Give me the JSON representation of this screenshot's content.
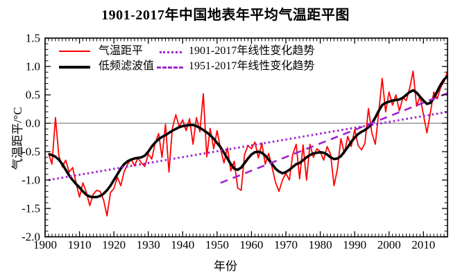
{
  "page": {
    "background": "#ffffff"
  },
  "chart_data": {
    "type": "line",
    "title": "1901-2017年中国地表年平均气温距平图",
    "xlabel": "年份",
    "ylabel": "气温距平/°C",
    "x_range": [
      1900,
      2017
    ],
    "y_range": [
      -2.0,
      1.5
    ],
    "x_minor_step": 1,
    "y_minor_step": 0.1,
    "x_major_ticks": [
      1900,
      1910,
      1920,
      1930,
      1940,
      1950,
      1960,
      1970,
      1980,
      1990,
      2000,
      2010
    ],
    "x_tick_labels": [
      "1900",
      "1910",
      "1920",
      "1930",
      "1940",
      "1950",
      "1960",
      "1970",
      "1980",
      "1990",
      "2000",
      "2010"
    ],
    "y_major_ticks": [
      1.5,
      1.0,
      0.5,
      0.0,
      -0.5,
      -1.0,
      -1.5,
      -2.0
    ],
    "y_tick_labels": [
      "1.5",
      "1.0",
      "0.5",
      "0.0",
      "-0.5",
      "-1.0",
      "-1.5",
      "-2.0"
    ],
    "zero_line": 0.0,
    "grid": "off",
    "legend_position": "top-left",
    "colors": {
      "anomaly": "#ff0000",
      "filtered": "#000000",
      "trend": "#a020d0",
      "axis": "#000000",
      "zero_line": "#666666"
    },
    "years": [
      1901,
      1902,
      1903,
      1904,
      1905,
      1906,
      1907,
      1908,
      1909,
      1910,
      1911,
      1912,
      1913,
      1914,
      1915,
      1916,
      1917,
      1918,
      1919,
      1920,
      1921,
      1922,
      1923,
      1924,
      1925,
      1926,
      1927,
      1928,
      1929,
      1930,
      1931,
      1932,
      1933,
      1934,
      1935,
      1936,
      1937,
      1938,
      1939,
      1940,
      1941,
      1942,
      1943,
      1944,
      1945,
      1946,
      1947,
      1948,
      1949,
      1950,
      1951,
      1952,
      1953,
      1954,
      1955,
      1956,
      1957,
      1958,
      1959,
      1960,
      1961,
      1962,
      1963,
      1964,
      1965,
      1966,
      1967,
      1968,
      1969,
      1970,
      1971,
      1972,
      1973,
      1974,
      1975,
      1976,
      1977,
      1978,
      1979,
      1980,
      1981,
      1982,
      1983,
      1984,
      1985,
      1986,
      1987,
      1988,
      1989,
      1990,
      1991,
      1992,
      1993,
      1994,
      1995,
      1996,
      1997,
      1998,
      1999,
      2000,
      2001,
      2002,
      2003,
      2004,
      2005,
      2006,
      2007,
      2008,
      2009,
      2010,
      2011,
      2012,
      2013,
      2014,
      2015,
      2016,
      2017
    ],
    "series": [
      {
        "name": "气温距平",
        "color": "#ff0000",
        "style": "solid",
        "width": 1.8,
        "values": [
          -0.53,
          -0.72,
          0.1,
          -0.57,
          -0.77,
          -0.65,
          -0.86,
          -0.78,
          -1.05,
          -1.3,
          -1.05,
          -1.22,
          -1.45,
          -1.25,
          -1.18,
          -1.2,
          -1.35,
          -1.63,
          -1.22,
          -1.15,
          -0.95,
          -1.1,
          -0.85,
          -0.72,
          -0.63,
          -0.75,
          -0.61,
          -0.7,
          -0.76,
          -0.54,
          -0.63,
          -0.35,
          -0.18,
          -0.6,
          -0.02,
          -0.86,
          -0.09,
          0.15,
          -0.06,
          0.06,
          -0.13,
          0.08,
          -0.37,
          0.1,
          -0.15,
          0.52,
          -0.59,
          -0.09,
          -0.45,
          -0.13,
          -0.45,
          -0.7,
          -0.43,
          -0.84,
          -0.67,
          -1.14,
          -1.18,
          -0.55,
          -0.39,
          -0.45,
          -0.33,
          -0.61,
          -0.35,
          -0.72,
          -0.53,
          -0.78,
          -1.04,
          -1.2,
          -1.0,
          -0.88,
          -1.0,
          -0.55,
          -0.37,
          -0.98,
          -0.38,
          -1.0,
          -0.37,
          -0.6,
          -0.45,
          -0.5,
          -0.65,
          -0.41,
          -0.55,
          -1.1,
          -0.8,
          -0.27,
          -0.53,
          -0.23,
          -0.41,
          -0.11,
          -0.39,
          -0.47,
          -0.35,
          0.26,
          -0.17,
          -0.37,
          0.2,
          0.79,
          0.2,
          0.55,
          0.32,
          0.5,
          0.22,
          0.45,
          0.4,
          0.62,
          0.92,
          0.3,
          0.48,
          0.15,
          -0.17,
          0.18,
          0.55,
          0.43,
          0.63,
          0.73,
          0.91
        ]
      },
      {
        "name": "低频滤波值",
        "color": "#000000",
        "style": "solid",
        "width": 3.6,
        "values": [
          -0.54,
          -0.56,
          -0.59,
          -0.64,
          -0.72,
          -0.82,
          -0.92,
          -1.0,
          -1.07,
          -1.13,
          -1.2,
          -1.26,
          -1.29,
          -1.3,
          -1.3,
          -1.28,
          -1.24,
          -1.18,
          -1.1,
          -1.0,
          -0.9,
          -0.8,
          -0.72,
          -0.67,
          -0.64,
          -0.62,
          -0.61,
          -0.6,
          -0.57,
          -0.5,
          -0.41,
          -0.34,
          -0.28,
          -0.24,
          -0.21,
          -0.17,
          -0.13,
          -0.1,
          -0.07,
          -0.05,
          -0.04,
          -0.03,
          -0.03,
          -0.05,
          -0.08,
          -0.12,
          -0.16,
          -0.21,
          -0.27,
          -0.35,
          -0.42,
          -0.52,
          -0.62,
          -0.72,
          -0.8,
          -0.82,
          -0.78,
          -0.7,
          -0.62,
          -0.55,
          -0.51,
          -0.5,
          -0.52,
          -0.57,
          -0.64,
          -0.72,
          -0.8,
          -0.85,
          -0.88,
          -0.86,
          -0.82,
          -0.77,
          -0.72,
          -0.7,
          -0.65,
          -0.6,
          -0.56,
          -0.53,
          -0.52,
          -0.51,
          -0.52,
          -0.55,
          -0.6,
          -0.63,
          -0.62,
          -0.58,
          -0.5,
          -0.42,
          -0.33,
          -0.25,
          -0.19,
          -0.15,
          -0.12,
          -0.07,
          -0.01,
          0.1,
          0.22,
          0.32,
          0.36,
          0.38,
          0.4,
          0.41,
          0.42,
          0.45,
          0.5,
          0.55,
          0.58,
          0.54,
          0.47,
          0.4,
          0.34,
          0.36,
          0.44,
          0.56,
          0.68,
          0.77,
          0.83
        ]
      },
      {
        "name": "1901-2017年线性变化趋势",
        "color": "#a020d0",
        "style": "dotted",
        "width": 3.0,
        "x": [
          1901,
          2017
        ],
        "y": [
          -1.0,
          0.2
        ]
      },
      {
        "name": "1951-2017年线性变化趋势",
        "color": "#a020d0",
        "style": "dashed",
        "width": 2.6,
        "x": [
          1951,
          2017
        ],
        "y": [
          -1.05,
          0.53
        ]
      }
    ]
  }
}
